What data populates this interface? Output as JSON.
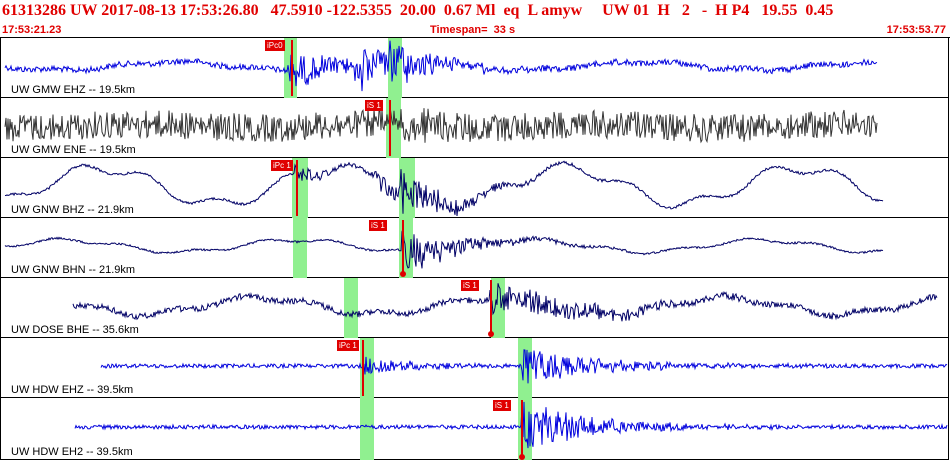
{
  "header": {
    "title": "61313286 UW 2017-08-13 17:53:26.80   47.5910 -122.5355  20.00  0.67 Ml  eq  L amyw     UW 01  H   2   -  H P4   19.55  0.45",
    "start_time": "17:53:21.23",
    "timespan": "Timespan=  33 s",
    "end_time": "17:53:53.77"
  },
  "colors": {
    "header_text": "#e00000",
    "blue_trace": "#0000dd",
    "gray_trace": "#333333",
    "navy_trace": "#000066",
    "pick": "#e00000",
    "pick_window": "#90f090"
  },
  "traces": [
    {
      "label": "UW GMW EHZ -- 19.5km",
      "pick_label": "iPc0",
      "color": "#0000dd"
    },
    {
      "label": "UW GMW ENE -- 19.5km",
      "pick_label": "iS 1",
      "color": "#333333"
    },
    {
      "label": "UW GNW BHZ -- 21.9km",
      "pick_label": "iPc 1",
      "color": "#000066"
    },
    {
      "label": "UW GNW BHN -- 21.9km",
      "pick_label": "iS 1",
      "color": "#000066"
    },
    {
      "label": "UW DOSE BHE -- 35.6km",
      "pick_label": "iS 1",
      "color": "#000066"
    },
    {
      "label": "UW HDW EHZ -- 39.5km",
      "pick_label": "iPc 1",
      "color": "#0000dd"
    },
    {
      "label": "UW HDW EH2 -- 39.5km",
      "pick_label": "iS 1",
      "color": "#0000dd"
    }
  ]
}
